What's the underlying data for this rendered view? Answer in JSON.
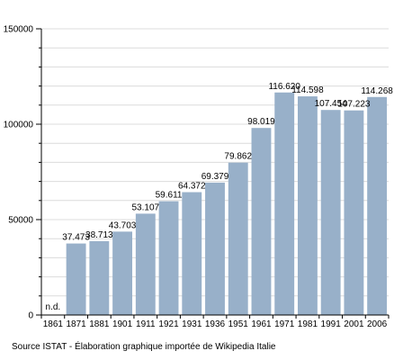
{
  "chart_data": {
    "type": "bar",
    "categories": [
      "1861",
      "1871",
      "1881",
      "1901",
      "1911",
      "1921",
      "1931",
      "1936",
      "1951",
      "1961",
      "1971",
      "1981",
      "1991",
      "2001",
      "2006"
    ],
    "values": [
      null,
      37473,
      38713,
      43703,
      53107,
      59611,
      64372,
      69379,
      79862,
      98019,
      116620,
      114598,
      107454,
      107223,
      114268
    ],
    "data_labels": [
      "n.d.",
      "37.473",
      "38.713",
      "43.703",
      "53.107",
      "59.611",
      "64.372",
      "69.379",
      "79.862",
      "98.019",
      "116.620",
      "114.598",
      "107.454",
      "107.223",
      "114.268"
    ],
    "y_ticks": [
      0,
      50000,
      100000,
      150000
    ],
    "y_tick_labels": [
      "0",
      "50000",
      "100000",
      "150000"
    ],
    "ylim": [
      0,
      150000
    ],
    "minor_tick_step": 10000,
    "grid": true,
    "title": "",
    "xlabel": "",
    "ylabel": "",
    "colors": {
      "bar": "#98b0c9",
      "grid": "#dcdcdc",
      "axis": "#000000"
    }
  },
  "source_text": "Source ISTAT - Élaboration graphique importée de Wikipedia Italie"
}
